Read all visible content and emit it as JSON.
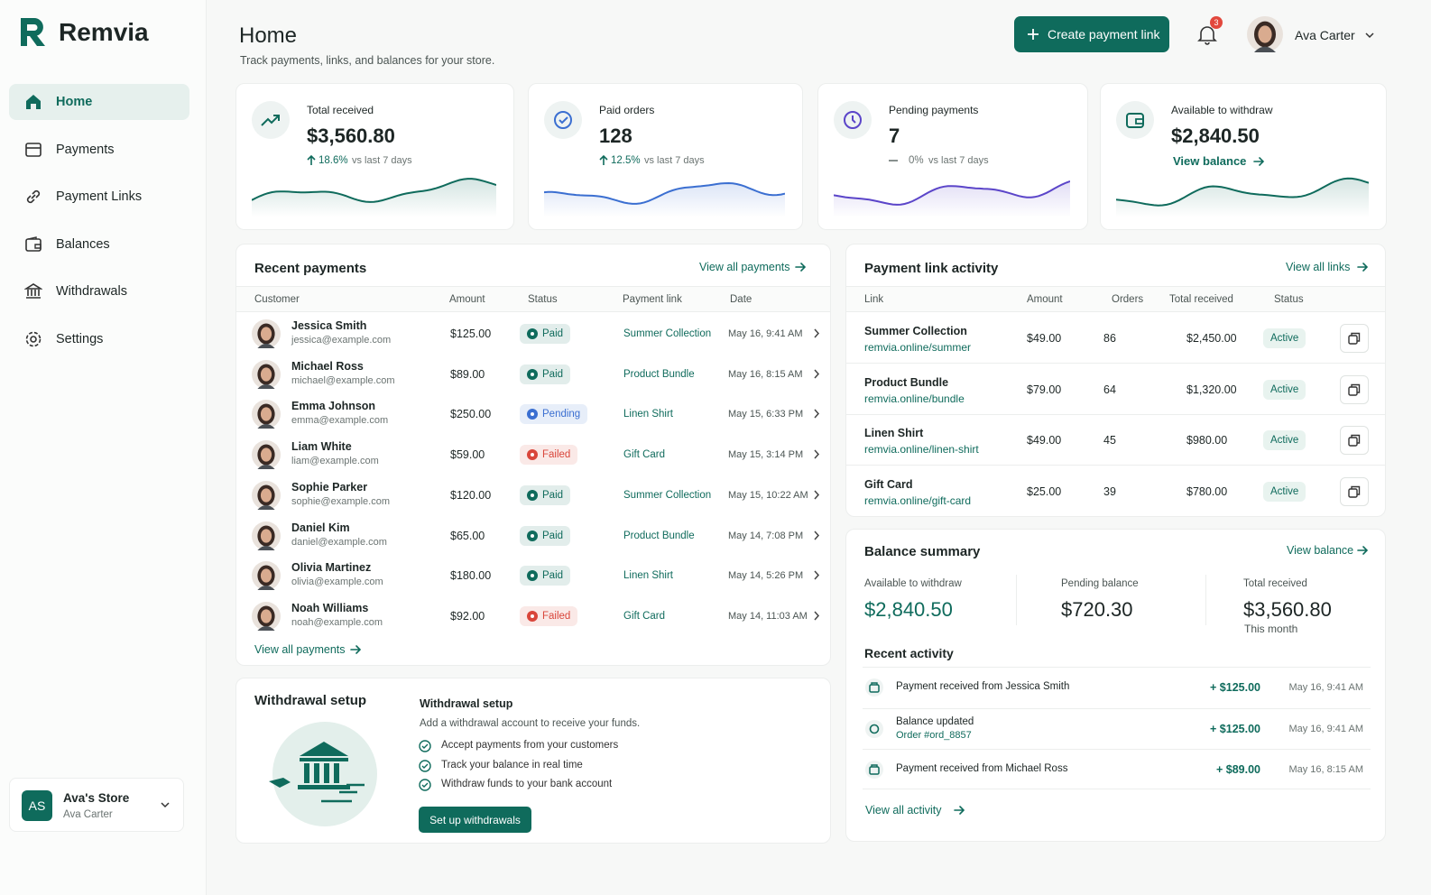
{
  "brand": "Remvia",
  "nav": [
    "Home",
    "Payments",
    "Payment Links",
    "Balances",
    "Withdrawals",
    "Settings"
  ],
  "store": {
    "initials": "AS",
    "name": "Ava's Store",
    "user": "Ava Carter"
  },
  "header": {
    "title": "Home",
    "subtitle": "Track payments, links, and balances for your store.",
    "create_button": "Create payment link",
    "notifications": "3",
    "user": "Ava Carter"
  },
  "stats": [
    {
      "label": "Total received",
      "value": "$3,560.80",
      "change": "18.6%",
      "compare": "vs last 7 days",
      "color": "#0f6b5c",
      "change_color": "#0f6b5c"
    },
    {
      "label": "Paid orders",
      "value": "128",
      "change": "12.5%",
      "compare": "vs last 7 days",
      "color": "#3b6fd1",
      "change_color": "#0f6b5c"
    },
    {
      "label": "Pending payments",
      "value": "7",
      "change": "0%",
      "compare": "vs last 7 days",
      "color": "#5b45c9",
      "change_color": "#6b7472"
    },
    {
      "label": "Available to withdraw",
      "value": "$2,840.50",
      "link": "View balance",
      "color": "#0f6b5c"
    }
  ],
  "recent_payments": {
    "title": "Recent payments",
    "link": "View all payments",
    "columns": [
      "Customer",
      "Amount",
      "Status",
      "Payment link",
      "Date"
    ],
    "rows": [
      {
        "name": "Jessica Smith",
        "email": "jessica@example.com",
        "amount": "$125.00",
        "status": "Paid",
        "status_color": "#0f6b5c",
        "link": "Summer Collection",
        "date": "May 16, 9:41 AM"
      },
      {
        "name": "Michael Ross",
        "email": "michael@example.com",
        "amount": "$89.00",
        "status": "Paid",
        "status_color": "#0f6b5c",
        "link": "Product Bundle",
        "date": "May 16, 8:15 AM"
      },
      {
        "name": "Emma Johnson",
        "email": "emma@example.com",
        "amount": "$250.00",
        "status": "Pending",
        "status_color": "#3b6fd1",
        "link": "Linen Shirt",
        "date": "May 15, 6:33 PM"
      },
      {
        "name": "Liam White",
        "email": "liam@example.com",
        "amount": "$59.00",
        "status": "Failed",
        "status_color": "#d9463b",
        "link": "Gift Card",
        "date": "May 15, 3:14 PM"
      },
      {
        "name": "Sophie Parker",
        "email": "sophie@example.com",
        "amount": "$120.00",
        "status": "Paid",
        "status_color": "#0f6b5c",
        "link": "Summer Collection",
        "date": "May 15, 10:22 AM"
      },
      {
        "name": "Daniel Kim",
        "email": "daniel@example.com",
        "amount": "$65.00",
        "status": "Paid",
        "status_color": "#0f6b5c",
        "link": "Product Bundle",
        "date": "May 14, 7:08 PM"
      },
      {
        "name": "Olivia Martinez",
        "email": "olivia@example.com",
        "amount": "$180.00",
        "status": "Paid",
        "status_color": "#0f6b5c",
        "link": "Linen Shirt",
        "date": "May 14, 5:26 PM"
      },
      {
        "name": "Noah Williams",
        "email": "noah@example.com",
        "amount": "$92.00",
        "status": "Failed",
        "status_color": "#d9463b",
        "link": "Gift Card",
        "date": "May 14, 11:03 AM"
      }
    ],
    "footer_link": "View all payments"
  },
  "link_activity": {
    "title": "Payment link activity",
    "link": "View all links",
    "columns": [
      "Link",
      "Amount",
      "Orders",
      "Total received",
      "Status"
    ],
    "rows": [
      {
        "name": "Summer Collection",
        "url": "remvia.online/summer",
        "amount": "$49.00",
        "orders": "86",
        "total": "$2,450.00",
        "status": "Active"
      },
      {
        "name": "Product Bundle",
        "url": "remvia.online/bundle",
        "amount": "$79.00",
        "orders": "64",
        "total": "$1,320.00",
        "status": "Active"
      },
      {
        "name": "Linen Shirt",
        "url": "remvia.online/linen-shirt",
        "amount": "$49.00",
        "orders": "45",
        "total": "$980.00",
        "status": "Active"
      },
      {
        "name": "Gift Card",
        "url": "remvia.online/gift-card",
        "amount": "$25.00",
        "orders": "39",
        "total": "$780.00",
        "status": "Active"
      }
    ]
  },
  "balance_summary": {
    "title": "Balance summary",
    "link": "View balance",
    "items": [
      {
        "label": "Available to withdraw",
        "value": "$2,840.50"
      },
      {
        "label": "Pending balance",
        "value": "$720.30"
      },
      {
        "label": "Total received",
        "value": "$3,560.80",
        "note": "This month"
      }
    ],
    "activity_title": "Recent activity",
    "activity": [
      {
        "text": "Payment received from Jessica Smith",
        "amount": "+ $125.00",
        "date": "May 16, 9:41 AM"
      },
      {
        "text": "Balance updated",
        "sub": "Order #ord_8857",
        "amount": "+ $125.00",
        "date": "May 16, 9:41 AM"
      },
      {
        "text": "Payment received from Michael Ross",
        "amount": "+ $89.00",
        "date": "May 16, 8:15 AM"
      }
    ],
    "footer_link": "View all activity"
  },
  "withdrawal": {
    "title": "Withdrawal setup",
    "heading": "Withdrawal setup",
    "text": "Add a withdrawal account to receive your funds.",
    "points": [
      "Accept payments from your customers",
      "Track your balance in real time",
      "Withdraw funds to your bank account"
    ],
    "button": "Set up withdrawals"
  }
}
